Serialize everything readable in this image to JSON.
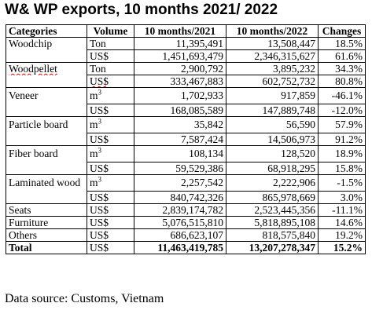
{
  "title": "W& WP  exports, 10 months 2021/ 2022",
  "headers": {
    "categories": "Categories",
    "volume": "Volume",
    "y2021": "10 months/2021",
    "y2022": "10 months/2022",
    "changes": "Changes"
  },
  "rows": [
    {
      "category": "Woodchip",
      "unit": "Ton",
      "y2021": "11,395,491",
      "y2022": "13,508,447",
      "change": "18.5%"
    },
    {
      "category": "",
      "unit": "US$",
      "y2021": "1,451,693,479",
      "y2022": "2,346,315,627",
      "change": "61.6%"
    },
    {
      "category": "Woodpellet",
      "unit": "Ton",
      "y2021": "2,900,792",
      "y2022": "3,895,232",
      "change": "34.3%"
    },
    {
      "category": "",
      "unit": "US$",
      "y2021": "333,467,883",
      "y2022": "602,752,732",
      "change": "80.8%"
    },
    {
      "category": "Veneer",
      "unit": "m",
      "unit_sup": "3",
      "y2021": "1,702,933",
      "y2022": "917,859",
      "change": "-46.1%"
    },
    {
      "category": "",
      "unit": "US$",
      "y2021": "168,085,589",
      "y2022": "147,889,748",
      "change": "-12.0%"
    },
    {
      "category": "Particle board",
      "unit": "m",
      "unit_sup": "3",
      "y2021": "35,842",
      "y2022": "56,590",
      "change": "57.9%"
    },
    {
      "category": "",
      "unit": "US$",
      "y2021": "7,587,424",
      "y2022": "14,506,973",
      "change": "91.2%"
    },
    {
      "category": "Fiber board",
      "unit": "m",
      "unit_sup": "3",
      "y2021": "108,134",
      "y2022": "128,520",
      "change": "18.9%"
    },
    {
      "category": "",
      "unit": "US$",
      "y2021": "59,529,386",
      "y2022": "68,918,295",
      "change": "15.8%"
    },
    {
      "category": "Laminated wood",
      "unit": "m",
      "unit_sup": "3",
      "y2021": "2,257,542",
      "y2022": "2,222,906",
      "change": "-1.5%"
    },
    {
      "category": "",
      "unit": "US$",
      "y2021": "840,742,326",
      "y2022": "865,978,669",
      "change": "3.0%"
    },
    {
      "category": "Seats",
      "unit": "US$",
      "y2021": "2,839,174,782",
      "y2022": "2,523,445,356",
      "change": "-11.1%"
    },
    {
      "category": "Furniture",
      "unit": "US$",
      "y2021": "5,076,515,810",
      "y2022": "5,818,895,108",
      "change": "14.6%"
    },
    {
      "category": "Others",
      "unit": "US$",
      "y2021": "686,623,107",
      "y2022": "818,575,840",
      "change": "19.2%"
    },
    {
      "category": "Total",
      "unit": "US$",
      "y2021": "11,463,419,785",
      "y2022": "13,207,278,347",
      "change": "15.2%"
    }
  ],
  "source": "Data source: Customs, Vietnam"
}
